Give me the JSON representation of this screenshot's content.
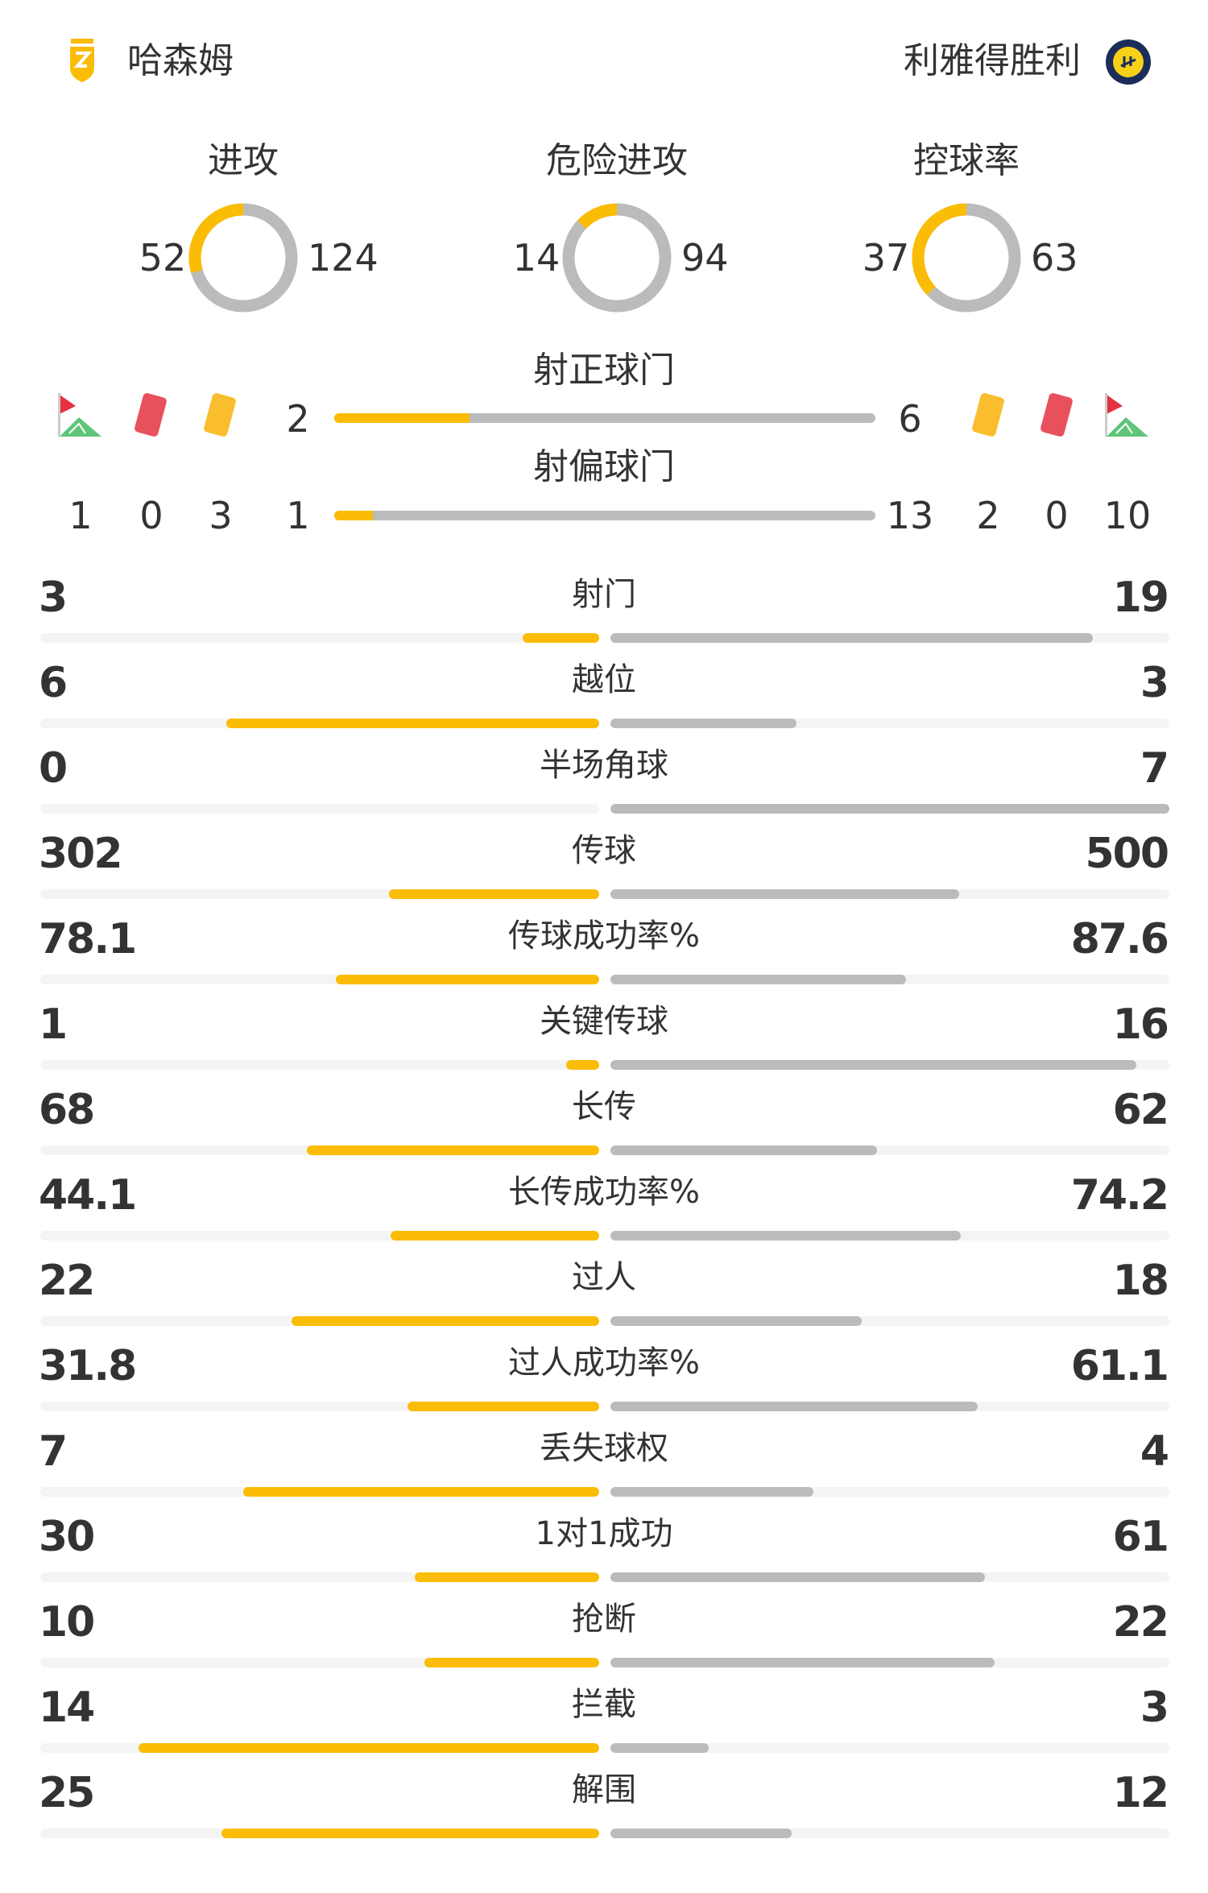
{
  "colors": {
    "home": "#fbbc05",
    "away": "#bbbbbb",
    "track_bg": "#f4f4f4",
    "text": "#333333",
    "red_card": "#e8505b",
    "yellow_card": "#f9bd2e",
    "corner_green": "#5fc579",
    "corner_red": "#e5323f"
  },
  "home": {
    "name": "哈森姆",
    "logo": "hazem-shield-logo"
  },
  "away": {
    "name": "利雅得胜利",
    "logo": "al-nassr-crest-logo"
  },
  "donuts": [
    {
      "title": "进攻",
      "home": 52,
      "away": 124
    },
    {
      "title": "危险进攻",
      "home": 14,
      "away": 94
    },
    {
      "title": "控球率",
      "home": 37,
      "away": 63
    }
  ],
  "shots_on_target": {
    "label": "射正球门",
    "home": 2,
    "away": 6
  },
  "shots_off_target": {
    "label": "射偏球门",
    "home": 1,
    "away": 13
  },
  "home_events": {
    "corners": 1,
    "red_cards": 0,
    "yellow_cards": 3
  },
  "away_events": {
    "yellow_cards": 2,
    "red_cards": 0,
    "corners": 10
  },
  "stats": [
    {
      "label": "射门",
      "home": "3",
      "away": "19"
    },
    {
      "label": "越位",
      "home": "6",
      "away": "3"
    },
    {
      "label": "半场角球",
      "home": "0",
      "away": "7"
    },
    {
      "label": "传球",
      "home": "302",
      "away": "500"
    },
    {
      "label": "传球成功率%",
      "home": "78.1",
      "away": "87.6"
    },
    {
      "label": "关键传球",
      "home": "1",
      "away": "16"
    },
    {
      "label": "长传",
      "home": "68",
      "away": "62"
    },
    {
      "label": "长传成功率%",
      "home": "44.1",
      "away": "74.2"
    },
    {
      "label": "过人",
      "home": "22",
      "away": "18"
    },
    {
      "label": "过人成功率%",
      "home": "31.8",
      "away": "61.1"
    },
    {
      "label": "丢失球权",
      "home": "7",
      "away": "4"
    },
    {
      "label": "1对1成功",
      "home": "30",
      "away": "61"
    },
    {
      "label": "抢断",
      "home": "10",
      "away": "22"
    },
    {
      "label": "拦截",
      "home": "14",
      "away": "3"
    },
    {
      "label": "解围",
      "home": "25",
      "away": "12"
    }
  ]
}
